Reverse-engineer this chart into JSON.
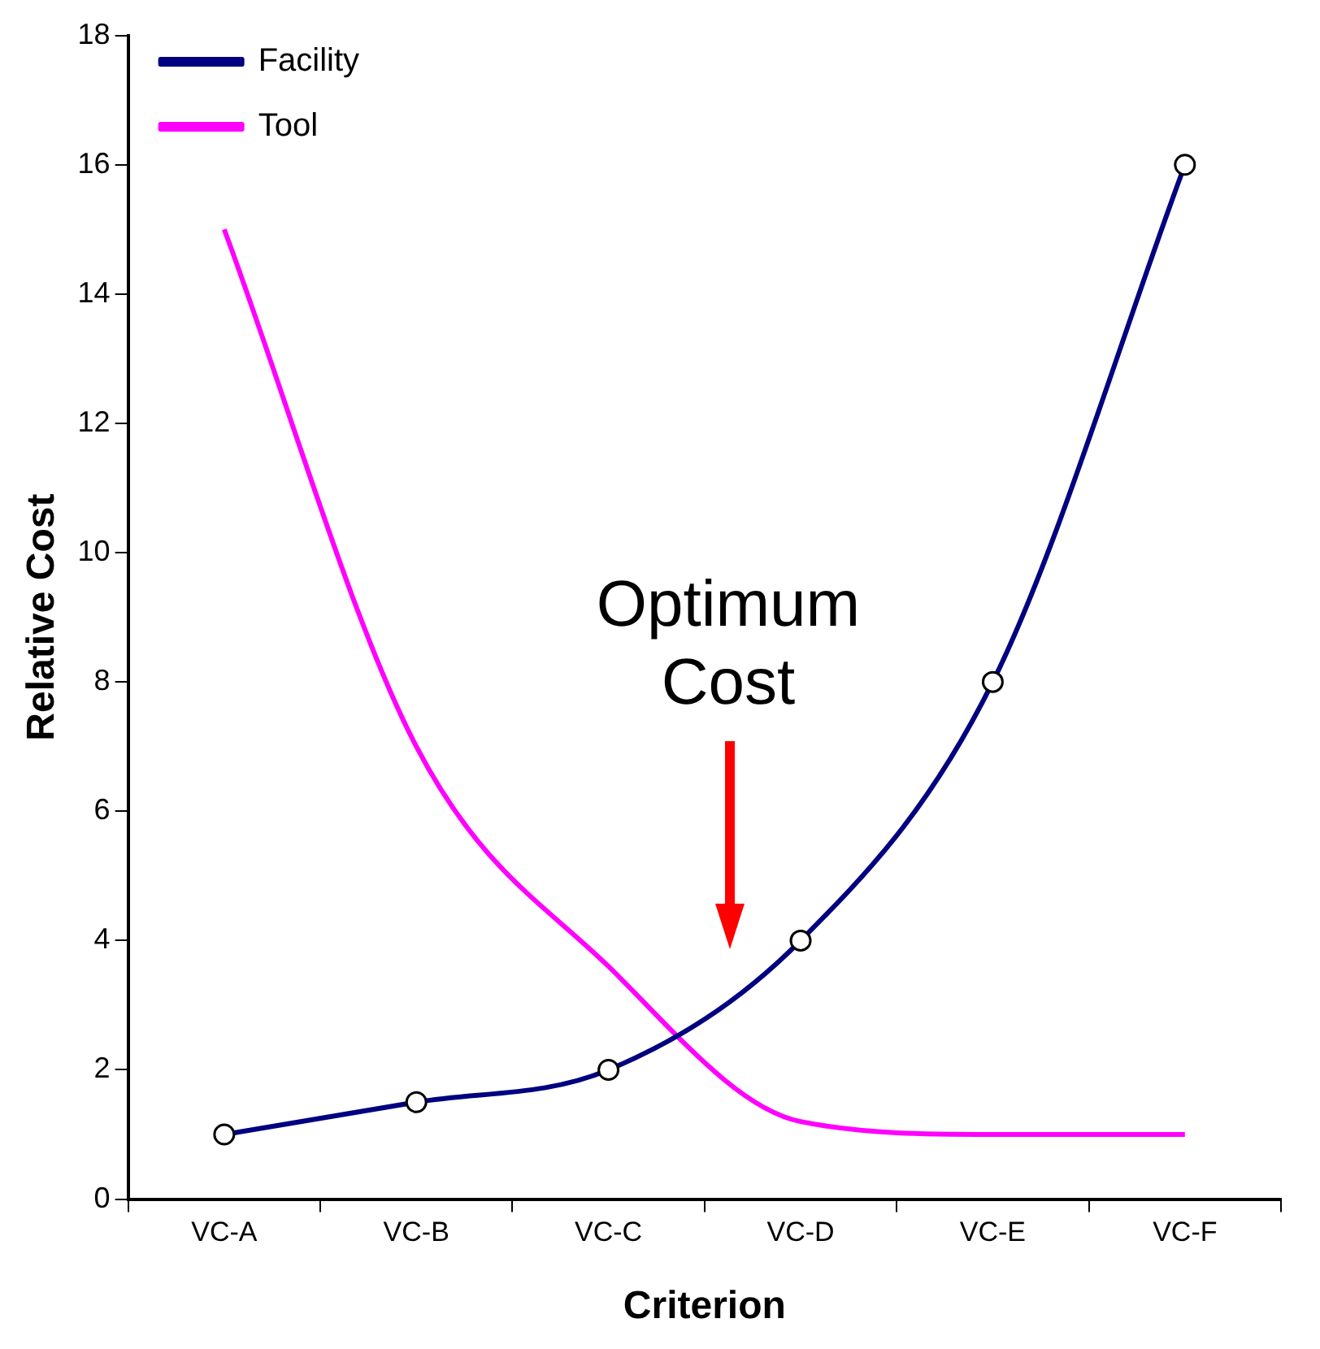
{
  "chart_data": {
    "type": "line",
    "xlabel": "Criterion",
    "ylabel": "Relative Cost",
    "categories": [
      "VC-A",
      "VC-B",
      "VC-C",
      "VC-D",
      "VC-E",
      "VC-F"
    ],
    "series": [
      {
        "name": "Facility",
        "color": "#000080",
        "values": [
          1,
          1.5,
          2,
          4,
          8,
          16
        ],
        "marker": "circle"
      },
      {
        "name": "Tool",
        "color": "#ff00ff",
        "values": [
          15,
          7,
          3.6,
          1.2,
          1,
          1
        ],
        "marker": "none"
      }
    ],
    "ylim": [
      0,
      18
    ],
    "yticks": [
      0,
      2,
      4,
      6,
      8,
      10,
      12,
      14,
      16,
      18
    ],
    "grid": false,
    "legend": "top left",
    "line_style": "solid",
    "annotations": [
      "Optimum Cost"
    ]
  }
}
